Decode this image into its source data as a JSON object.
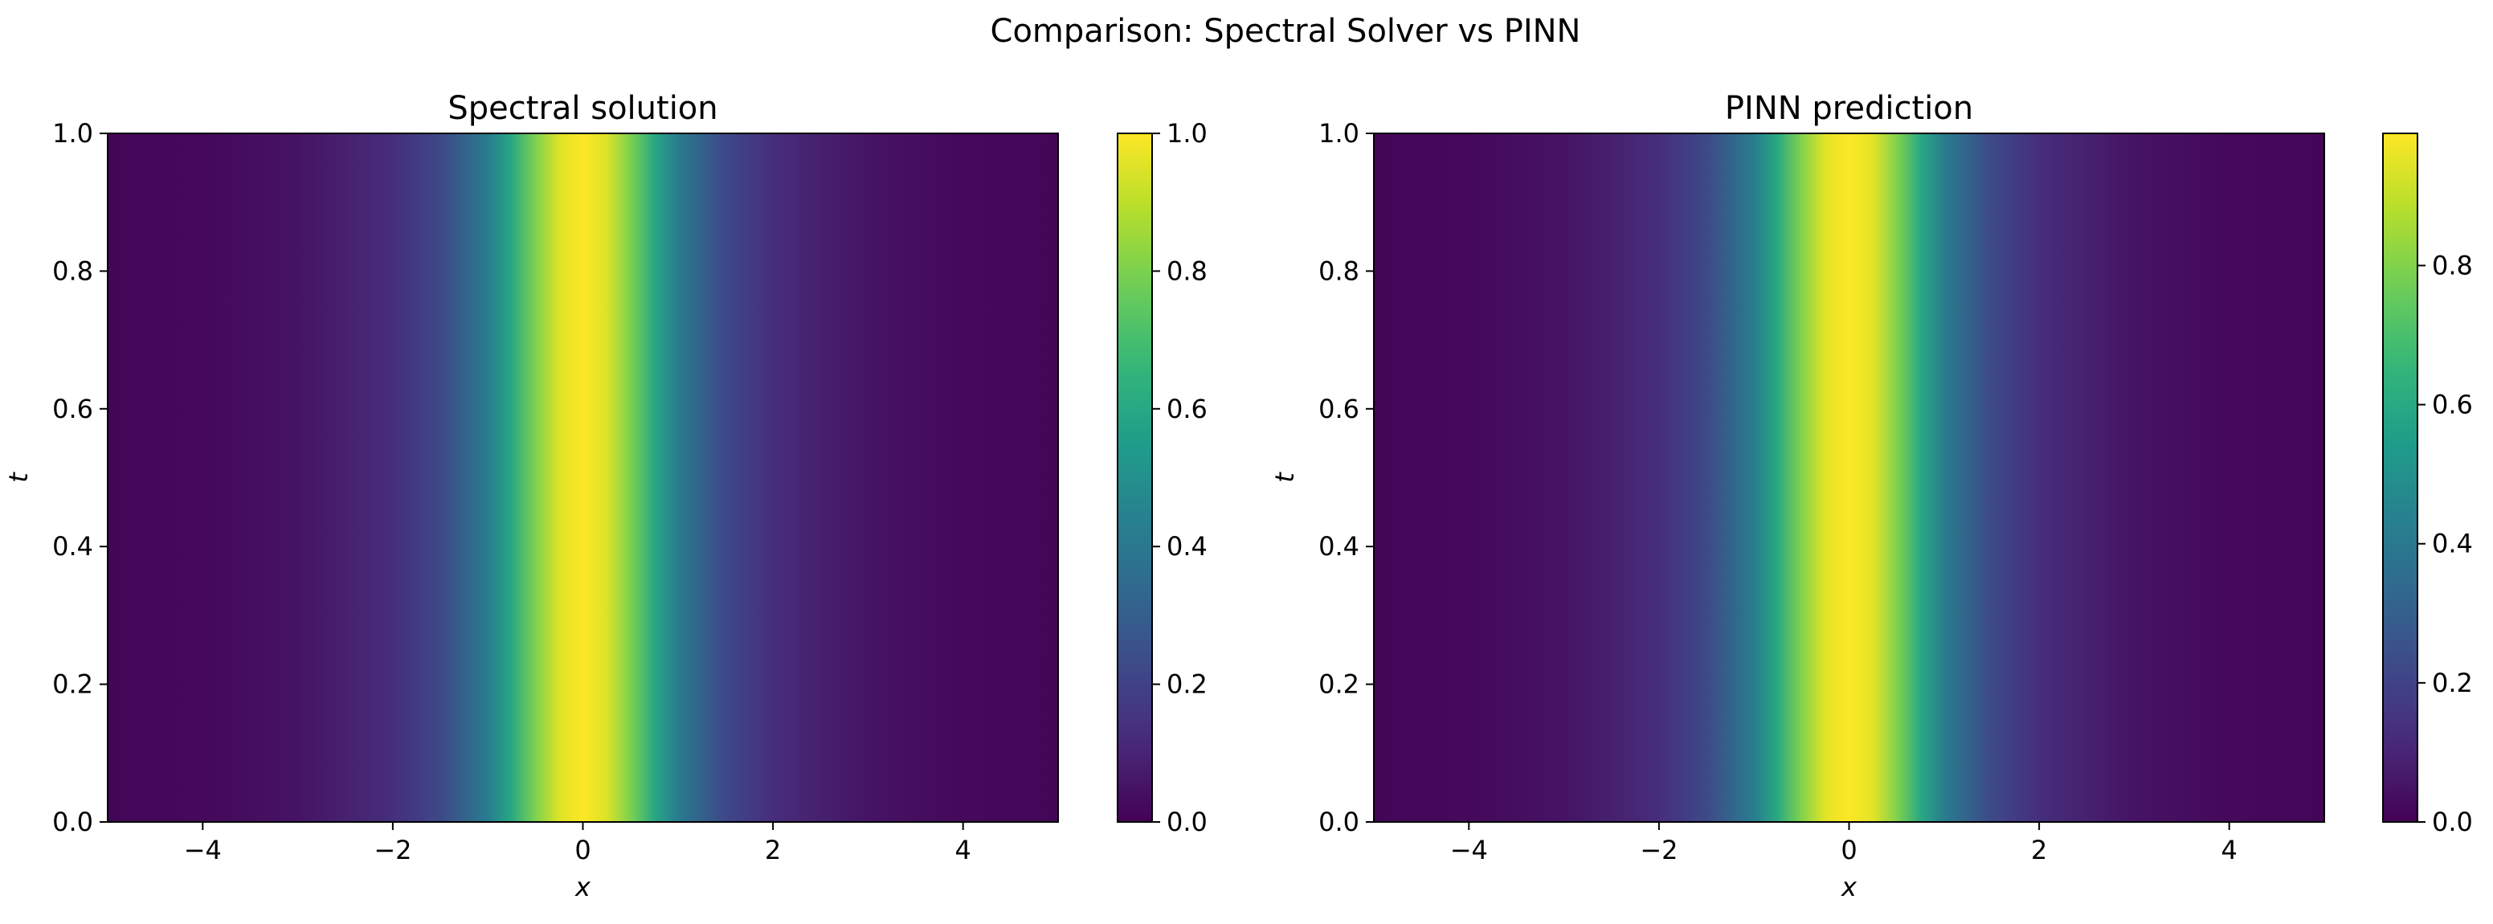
{
  "suptitle": "Comparison: Spectral Solver vs PINN",
  "colormap": "viridis",
  "chart_data": [
    {
      "type": "heatmap",
      "title": "Spectral solution",
      "xlabel": "x",
      "ylabel": "t",
      "xlim": [
        -5,
        5
      ],
      "ylim": [
        0,
        1
      ],
      "x_ticks": [
        -4,
        -2,
        0,
        2,
        4
      ],
      "x_tick_labels": [
        "−4",
        "−2",
        "0",
        "2",
        "4"
      ],
      "y_ticks": [
        0,
        0.2,
        0.4,
        0.6,
        0.8,
        1.0
      ],
      "y_tick_labels": [
        "0.0",
        "0.2",
        "0.4",
        "0.6",
        "0.8",
        "1.0"
      ],
      "colorbar": {
        "range": [
          0.0,
          1.0
        ],
        "ticks": [
          0.0,
          0.2,
          0.4,
          0.6,
          0.8,
          1.0
        ],
        "tick_labels": [
          "0.0",
          "0.2",
          "0.4",
          "0.6",
          "0.8",
          "1.0"
        ]
      },
      "profile": {
        "description_of_value": "u(x) constant in t",
        "x": [
          -5,
          -4,
          -3,
          -2,
          -1.5,
          -1,
          -0.75,
          -0.5,
          -0.25,
          0,
          0.25,
          0.5,
          0.75,
          1,
          1.5,
          2,
          3,
          4,
          5
        ],
        "u": [
          0.01,
          0.02,
          0.05,
          0.13,
          0.22,
          0.42,
          0.6,
          0.8,
          0.95,
          1.0,
          0.95,
          0.8,
          0.6,
          0.42,
          0.22,
          0.13,
          0.05,
          0.02,
          0.01
        ]
      }
    },
    {
      "type": "heatmap",
      "title": "PINN prediction",
      "xlabel": "x",
      "ylabel": "t",
      "xlim": [
        -5,
        5
      ],
      "ylim": [
        0,
        1
      ],
      "x_ticks": [
        -4,
        -2,
        0,
        2,
        4
      ],
      "x_tick_labels": [
        "−4",
        "−2",
        "0",
        "2",
        "4"
      ],
      "y_ticks": [
        0,
        0.2,
        0.4,
        0.6,
        0.8,
        1.0
      ],
      "y_tick_labels": [
        "0.0",
        "0.2",
        "0.4",
        "0.6",
        "0.8",
        "1.0"
      ],
      "colorbar": {
        "range": [
          0.0,
          0.99
        ],
        "ticks": [
          0.0,
          0.2,
          0.4,
          0.6,
          0.8
        ],
        "tick_labels": [
          "0.0",
          "0.2",
          "0.4",
          "0.6",
          "0.8"
        ]
      },
      "profile": {
        "description_of_value": "u(x) constant in t",
        "x": [
          -5,
          -4,
          -3,
          -2,
          -1.5,
          -1,
          -0.75,
          -0.5,
          -0.25,
          0,
          0.25,
          0.5,
          0.75,
          1,
          1.5,
          2,
          3,
          4,
          5
        ],
        "u": [
          0.01,
          0.02,
          0.05,
          0.13,
          0.22,
          0.42,
          0.6,
          0.8,
          0.95,
          0.99,
          0.95,
          0.8,
          0.6,
          0.42,
          0.22,
          0.13,
          0.05,
          0.02,
          0.01
        ]
      }
    }
  ]
}
